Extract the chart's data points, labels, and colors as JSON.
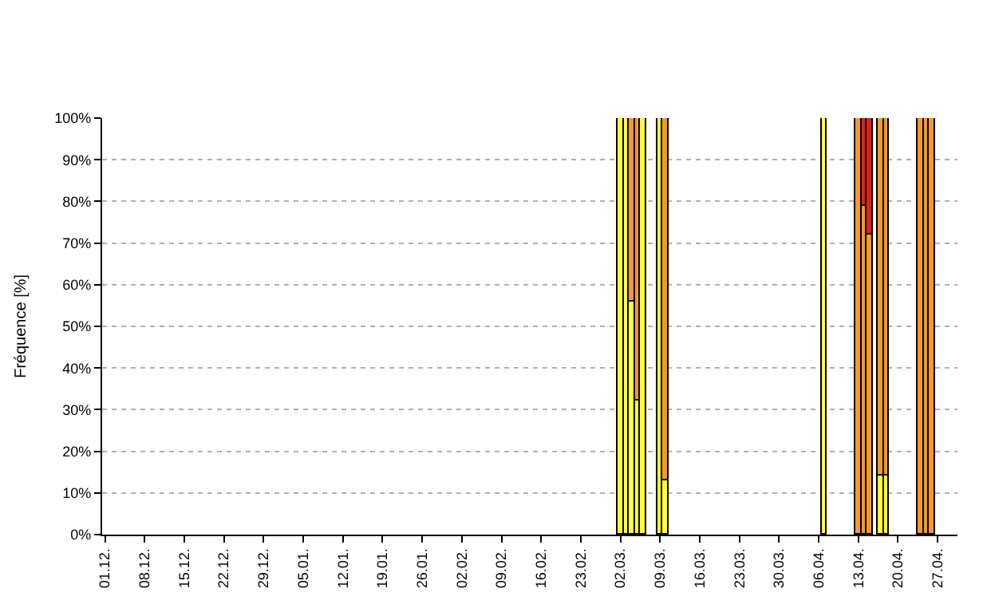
{
  "chart_data": {
    "type": "bar",
    "stacked": true,
    "ylabel": "Fréquence [%]",
    "categories": [
      "01.12.",
      null,
      null,
      null,
      null,
      null,
      null,
      "08.12.",
      null,
      null,
      null,
      null,
      null,
      null,
      "15.12.",
      null,
      null,
      null,
      null,
      null,
      null,
      "22.12.",
      null,
      null,
      null,
      null,
      null,
      null,
      "29.12.",
      null,
      null,
      null,
      null,
      null,
      null,
      "05.01.",
      null,
      null,
      null,
      null,
      null,
      null,
      "12.01.",
      null,
      null,
      null,
      null,
      null,
      null,
      "19.01.",
      null,
      null,
      null,
      null,
      null,
      null,
      "26.01.",
      null,
      null,
      null,
      null,
      null,
      null,
      "02.02.",
      null,
      null,
      null,
      null,
      null,
      null,
      "09.02.",
      null,
      null,
      null,
      null,
      null,
      null,
      "16.02.",
      null,
      null,
      null,
      null,
      null,
      null,
      "23.02.",
      null,
      null,
      null,
      null,
      null,
      null,
      "02.03.",
      null,
      null,
      null,
      null,
      null,
      null,
      "09.03.",
      null,
      null,
      null,
      null,
      null,
      null,
      "16.03.",
      null,
      null,
      null,
      null,
      null,
      null,
      "23.03.",
      null,
      null,
      null,
      null,
      null,
      null,
      "30.03.",
      null,
      null,
      null,
      null,
      null,
      null,
      "06.04.",
      null,
      null,
      null,
      null,
      null,
      null,
      "13.04.",
      null,
      null,
      null,
      null,
      null,
      null,
      "20.04.",
      null,
      null,
      null,
      null,
      null,
      null,
      "27.04.",
      null,
      null,
      null
    ],
    "series": [
      {
        "color": "#ffff33",
        "values": [
          null,
          null,
          null,
          null,
          null,
          null,
          null,
          null,
          null,
          null,
          null,
          null,
          null,
          null,
          null,
          null,
          null,
          null,
          null,
          null,
          null,
          null,
          null,
          null,
          null,
          null,
          null,
          null,
          null,
          null,
          null,
          null,
          null,
          null,
          null,
          null,
          null,
          null,
          null,
          null,
          null,
          null,
          null,
          null,
          null,
          null,
          null,
          null,
          null,
          null,
          null,
          null,
          null,
          null,
          null,
          null,
          null,
          null,
          null,
          null,
          null,
          null,
          null,
          null,
          null,
          null,
          null,
          null,
          null,
          null,
          null,
          null,
          null,
          null,
          null,
          null,
          null,
          null,
          null,
          null,
          null,
          null,
          null,
          null,
          null,
          null,
          null,
          null,
          null,
          null,
          null,
          100,
          100,
          56,
          32,
          100,
          null,
          null,
          100,
          13,
          null,
          null,
          null,
          null,
          null,
          null,
          null,
          null,
          null,
          null,
          null,
          null,
          null,
          null,
          null,
          null,
          null,
          null,
          null,
          null,
          null,
          null,
          null,
          null,
          null,
          null,
          null,
          100,
          null,
          null,
          null,
          null,
          null,
          null,
          null,
          null,
          null,
          14,
          14,
          null,
          null,
          null,
          null,
          null,
          null,
          null,
          null,
          null,
          null,
          null,
          null
        ]
      },
      {
        "color": "#f39a2b",
        "values": [
          null,
          null,
          null,
          null,
          null,
          null,
          null,
          null,
          null,
          null,
          null,
          null,
          null,
          null,
          null,
          null,
          null,
          null,
          null,
          null,
          null,
          null,
          null,
          null,
          null,
          null,
          null,
          null,
          null,
          null,
          null,
          null,
          null,
          null,
          null,
          null,
          null,
          null,
          null,
          null,
          null,
          null,
          null,
          null,
          null,
          null,
          null,
          null,
          null,
          null,
          null,
          null,
          null,
          null,
          null,
          null,
          null,
          null,
          null,
          null,
          null,
          null,
          null,
          null,
          null,
          null,
          null,
          null,
          null,
          null,
          null,
          null,
          null,
          null,
          null,
          null,
          null,
          null,
          null,
          null,
          null,
          null,
          null,
          null,
          null,
          null,
          null,
          null,
          null,
          null,
          null,
          null,
          null,
          44,
          68,
          null,
          null,
          null,
          null,
          87,
          null,
          null,
          null,
          null,
          null,
          null,
          null,
          null,
          null,
          null,
          null,
          null,
          null,
          null,
          null,
          null,
          null,
          null,
          null,
          null,
          null,
          null,
          null,
          null,
          null,
          null,
          null,
          null,
          null,
          null,
          null,
          null,
          null,
          100,
          79,
          72,
          null,
          86,
          86,
          null,
          null,
          null,
          null,
          null,
          100,
          100,
          100,
          null,
          null,
          null,
          null
        ]
      },
      {
        "color": "#e02020",
        "values": [
          null,
          null,
          null,
          null,
          null,
          null,
          null,
          null,
          null,
          null,
          null,
          null,
          null,
          null,
          null,
          null,
          null,
          null,
          null,
          null,
          null,
          null,
          null,
          null,
          null,
          null,
          null,
          null,
          null,
          null,
          null,
          null,
          null,
          null,
          null,
          null,
          null,
          null,
          null,
          null,
          null,
          null,
          null,
          null,
          null,
          null,
          null,
          null,
          null,
          null,
          null,
          null,
          null,
          null,
          null,
          null,
          null,
          null,
          null,
          null,
          null,
          null,
          null,
          null,
          null,
          null,
          null,
          null,
          null,
          null,
          null,
          null,
          null,
          null,
          null,
          null,
          null,
          null,
          null,
          null,
          null,
          null,
          null,
          null,
          null,
          null,
          null,
          null,
          null,
          null,
          null,
          null,
          null,
          null,
          null,
          null,
          null,
          null,
          null,
          null,
          null,
          null,
          null,
          null,
          null,
          null,
          null,
          null,
          null,
          null,
          null,
          null,
          null,
          null,
          null,
          null,
          null,
          null,
          null,
          null,
          null,
          null,
          null,
          null,
          null,
          null,
          null,
          null,
          null,
          null,
          null,
          null,
          null,
          null,
          21,
          28,
          null,
          null,
          null,
          null,
          null,
          null,
          null,
          null,
          null,
          null,
          null,
          null,
          null,
          null,
          null
        ]
      }
    ],
    "ylim": [
      0,
      100
    ],
    "yticks": [
      {
        "value": 0,
        "label": "0%"
      },
      {
        "value": 10,
        "label": "10%"
      },
      {
        "value": 20,
        "label": "20%"
      },
      {
        "value": 30,
        "label": "30%"
      },
      {
        "value": 40,
        "label": "40%"
      },
      {
        "value": 50,
        "label": "50%"
      },
      {
        "value": 60,
        "label": "60%"
      },
      {
        "value": 70,
        "label": "70%"
      },
      {
        "value": 80,
        "label": "80%"
      },
      {
        "value": 90,
        "label": "90%"
      },
      {
        "value": 100,
        "label": "100%"
      }
    ],
    "grid": "y"
  }
}
